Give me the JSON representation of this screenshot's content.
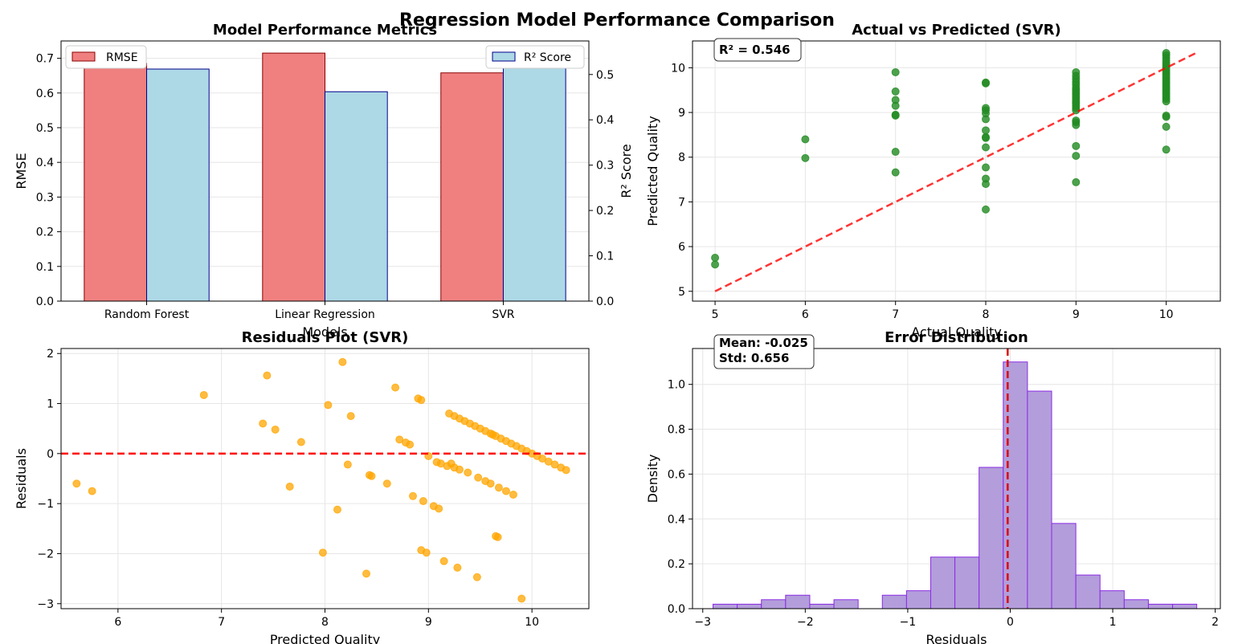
{
  "figure": {
    "suptitle": "Regression Model Performance Comparison"
  },
  "chart_data": [
    {
      "id": "metrics",
      "type": "bar",
      "title": "Model Performance Metrics",
      "xlabel": "Models",
      "ylabel": "RMSE",
      "ylabel_right": "R² Score",
      "categories": [
        "Random Forest",
        "Linear Regression",
        "SVR"
      ],
      "series": [
        {
          "name": "RMSE",
          "axis": "left",
          "values": [
            0.685,
            0.715,
            0.658
          ],
          "color": "#f08080",
          "edge": "#8b0000"
        },
        {
          "name": "R² Score",
          "axis": "right",
          "values": [
            0.512,
            0.462,
            0.546
          ],
          "color": "#add8e6",
          "edge": "#00008b"
        }
      ],
      "ylim": [
        0,
        0.75
      ],
      "yticks": [
        0.0,
        0.1,
        0.2,
        0.3,
        0.4,
        0.5,
        0.6,
        0.7
      ],
      "ylim_right": [
        0,
        0.574
      ],
      "yticks_right": [
        0.0,
        0.1,
        0.2,
        0.3,
        0.4,
        0.5
      ],
      "grid": true,
      "legend_left": "top-left",
      "legend_right": "top-right"
    },
    {
      "id": "actual_vs_pred",
      "type": "scatter",
      "title": "Actual vs Predicted (SVR)",
      "xlabel": "Actual Quality",
      "ylabel": "Predicted Quality",
      "annotation": "R² = 0.546",
      "color": "#228b22",
      "xlim": [
        4.75,
        10.6
      ],
      "ylim": [
        4.78,
        10.6
      ],
      "xticks": [
        5,
        6,
        7,
        8,
        9,
        10
      ],
      "yticks": [
        5,
        6,
        7,
        8,
        9,
        10
      ],
      "identity_line": [
        5,
        10.33
      ],
      "grid": true,
      "points": [
        [
          5,
          5.75
        ],
        [
          5,
          5.6
        ],
        [
          6,
          8.4
        ],
        [
          6,
          7.98
        ],
        [
          7,
          9.9
        ],
        [
          7,
          9.47
        ],
        [
          7,
          9.28
        ],
        [
          7,
          9.15
        ],
        [
          7,
          8.95
        ],
        [
          7,
          8.93
        ],
        [
          7,
          8.12
        ],
        [
          7,
          7.66
        ],
        [
          8,
          9.67
        ],
        [
          8,
          9.65
        ],
        [
          8,
          9.1
        ],
        [
          8,
          9.05
        ],
        [
          8,
          8.98
        ],
        [
          8,
          8.85
        ],
        [
          8,
          8.6
        ],
        [
          8,
          8.45
        ],
        [
          8,
          8.43
        ],
        [
          8,
          8.22
        ],
        [
          8,
          7.77
        ],
        [
          8,
          7.52
        ],
        [
          8,
          7.4
        ],
        [
          8,
          6.83
        ],
        [
          9,
          9.9
        ],
        [
          9,
          9.82
        ],
        [
          9,
          9.75
        ],
        [
          9,
          9.68
        ],
        [
          9,
          9.62
        ],
        [
          9,
          9.55
        ],
        [
          9,
          9.5
        ],
        [
          9,
          9.45
        ],
        [
          9,
          9.4
        ],
        [
          9,
          9.35
        ],
        [
          9,
          9.3
        ],
        [
          9,
          9.25
        ],
        [
          9,
          9.2
        ],
        [
          9,
          9.15
        ],
        [
          9,
          9.1
        ],
        [
          9,
          9.05
        ],
        [
          9,
          8.82
        ],
        [
          9,
          8.78
        ],
        [
          9,
          8.72
        ],
        [
          9,
          8.25
        ],
        [
          9,
          8.03
        ],
        [
          9,
          7.44
        ],
        [
          10,
          10.33
        ],
        [
          10,
          10.28
        ],
        [
          10,
          10.22
        ],
        [
          10,
          10.16
        ],
        [
          10,
          10.1
        ],
        [
          10,
          10.05
        ],
        [
          10,
          10.0
        ],
        [
          10,
          9.95
        ],
        [
          10,
          9.9
        ],
        [
          10,
          9.85
        ],
        [
          10,
          9.8
        ],
        [
          10,
          9.75
        ],
        [
          10,
          9.7
        ],
        [
          10,
          9.65
        ],
        [
          10,
          9.6
        ],
        [
          10,
          9.55
        ],
        [
          10,
          9.5
        ],
        [
          10,
          9.45
        ],
        [
          10,
          9.4
        ],
        [
          10,
          9.35
        ],
        [
          10,
          9.3
        ],
        [
          10,
          9.25
        ],
        [
          10,
          8.93
        ],
        [
          10,
          8.9
        ],
        [
          10,
          8.68
        ],
        [
          10,
          8.17
        ]
      ]
    },
    {
      "id": "residuals",
      "type": "scatter",
      "title": "Residuals Plot (SVR)",
      "xlabel": "Predicted Quality",
      "ylabel": "Residuals",
      "color": "#ffa500",
      "xlim": [
        5.45,
        10.55
      ],
      "ylim": [
        -3.1,
        2.1
      ],
      "xticks": [
        6,
        7,
        8,
        9,
        10
      ],
      "yticks": [
        -3,
        -2,
        -1,
        0,
        1,
        2
      ],
      "zero_line": 0,
      "grid": true,
      "points": [
        [
          5.6,
          -0.6
        ],
        [
          5.75,
          -0.75
        ],
        [
          6.83,
          1.17
        ],
        [
          7.4,
          0.6
        ],
        [
          7.44,
          1.56
        ],
        [
          7.52,
          0.48
        ],
        [
          7.66,
          -0.66
        ],
        [
          7.77,
          0.23
        ],
        [
          7.98,
          -1.98
        ],
        [
          8.03,
          0.97
        ],
        [
          8.12,
          -1.12
        ],
        [
          8.17,
          1.83
        ],
        [
          8.22,
          -0.22
        ],
        [
          8.25,
          0.75
        ],
        [
          8.4,
          -2.4
        ],
        [
          8.43,
          -0.43
        ],
        [
          8.45,
          -0.45
        ],
        [
          8.6,
          -0.6
        ],
        [
          8.68,
          1.32
        ],
        [
          8.72,
          0.28
        ],
        [
          8.78,
          0.22
        ],
        [
          8.82,
          0.18
        ],
        [
          8.85,
          -0.85
        ],
        [
          8.9,
          1.1
        ],
        [
          8.93,
          -1.93
        ],
        [
          8.93,
          1.07
        ],
        [
          8.95,
          -0.95
        ],
        [
          8.98,
          -1.98
        ],
        [
          9.0,
          -0.05
        ],
        [
          9.05,
          -1.05
        ],
        [
          9.1,
          -1.1
        ],
        [
          9.15,
          -2.15
        ],
        [
          9.2,
          0.8
        ],
        [
          9.22,
          -0.2
        ],
        [
          9.25,
          0.75
        ],
        [
          9.28,
          -2.28
        ],
        [
          9.3,
          0.7
        ],
        [
          9.35,
          0.65
        ],
        [
          9.4,
          0.6
        ],
        [
          9.45,
          0.55
        ],
        [
          9.47,
          -2.47
        ],
        [
          9.5,
          0.5
        ],
        [
          9.55,
          0.45
        ],
        [
          9.6,
          0.4
        ],
        [
          9.62,
          0.38
        ],
        [
          9.65,
          0.35
        ],
        [
          9.65,
          -1.65
        ],
        [
          9.67,
          -1.67
        ],
        [
          9.7,
          0.3
        ],
        [
          9.75,
          0.25
        ],
        [
          9.8,
          0.2
        ],
        [
          9.85,
          0.15
        ],
        [
          9.9,
          0.1
        ],
        [
          9.9,
          -2.9
        ],
        [
          9.95,
          0.05
        ],
        [
          10.0,
          0.0
        ],
        [
          10.05,
          -0.05
        ],
        [
          10.1,
          -0.1
        ],
        [
          10.16,
          -0.16
        ],
        [
          10.22,
          -0.22
        ],
        [
          10.28,
          -0.28
        ],
        [
          10.33,
          -0.33
        ],
        [
          9.08,
          -0.17
        ],
        [
          9.12,
          -0.2
        ],
        [
          9.18,
          -0.25
        ],
        [
          9.25,
          -0.28
        ],
        [
          9.3,
          -0.32
        ],
        [
          9.38,
          -0.38
        ],
        [
          9.48,
          -0.48
        ],
        [
          9.55,
          -0.55
        ],
        [
          9.6,
          -0.6
        ],
        [
          9.68,
          -0.68
        ],
        [
          9.75,
          -0.75
        ],
        [
          9.82,
          -0.82
        ]
      ]
    },
    {
      "id": "error_dist",
      "type": "bar",
      "subtype": "histogram",
      "title": "Error Distribution",
      "xlabel": "Residuals",
      "ylabel": "Density",
      "annotation_lines": [
        "Mean: -0.025",
        "Std: 0.656"
      ],
      "color": "#b39ddb",
      "edge": "#8a2be2",
      "mean_line": -0.025,
      "xlim": [
        -3.1,
        2.05
      ],
      "ylim": [
        0,
        1.16
      ],
      "xticks": [
        -3,
        -2,
        -1,
        0,
        1,
        2
      ],
      "yticks": [
        0.0,
        0.2,
        0.4,
        0.6,
        0.8,
        1.0
      ],
      "grid": true,
      "bin_edges": [
        -2.9,
        -2.664,
        -2.428,
        -2.192,
        -1.956,
        -1.72,
        -1.484,
        -1.248,
        -1.012,
        -0.776,
        -0.54,
        -0.304,
        -0.068,
        0.168,
        0.404,
        0.64,
        0.876,
        1.112,
        1.348,
        1.584,
        1.82
      ],
      "values": [
        0.02,
        0.02,
        0.04,
        0.06,
        0.02,
        0.04,
        0.0,
        0.06,
        0.08,
        0.23,
        0.23,
        0.63,
        1.1,
        0.97,
        0.38,
        0.15,
        0.08,
        0.04,
        0.02,
        0.02
      ]
    }
  ]
}
